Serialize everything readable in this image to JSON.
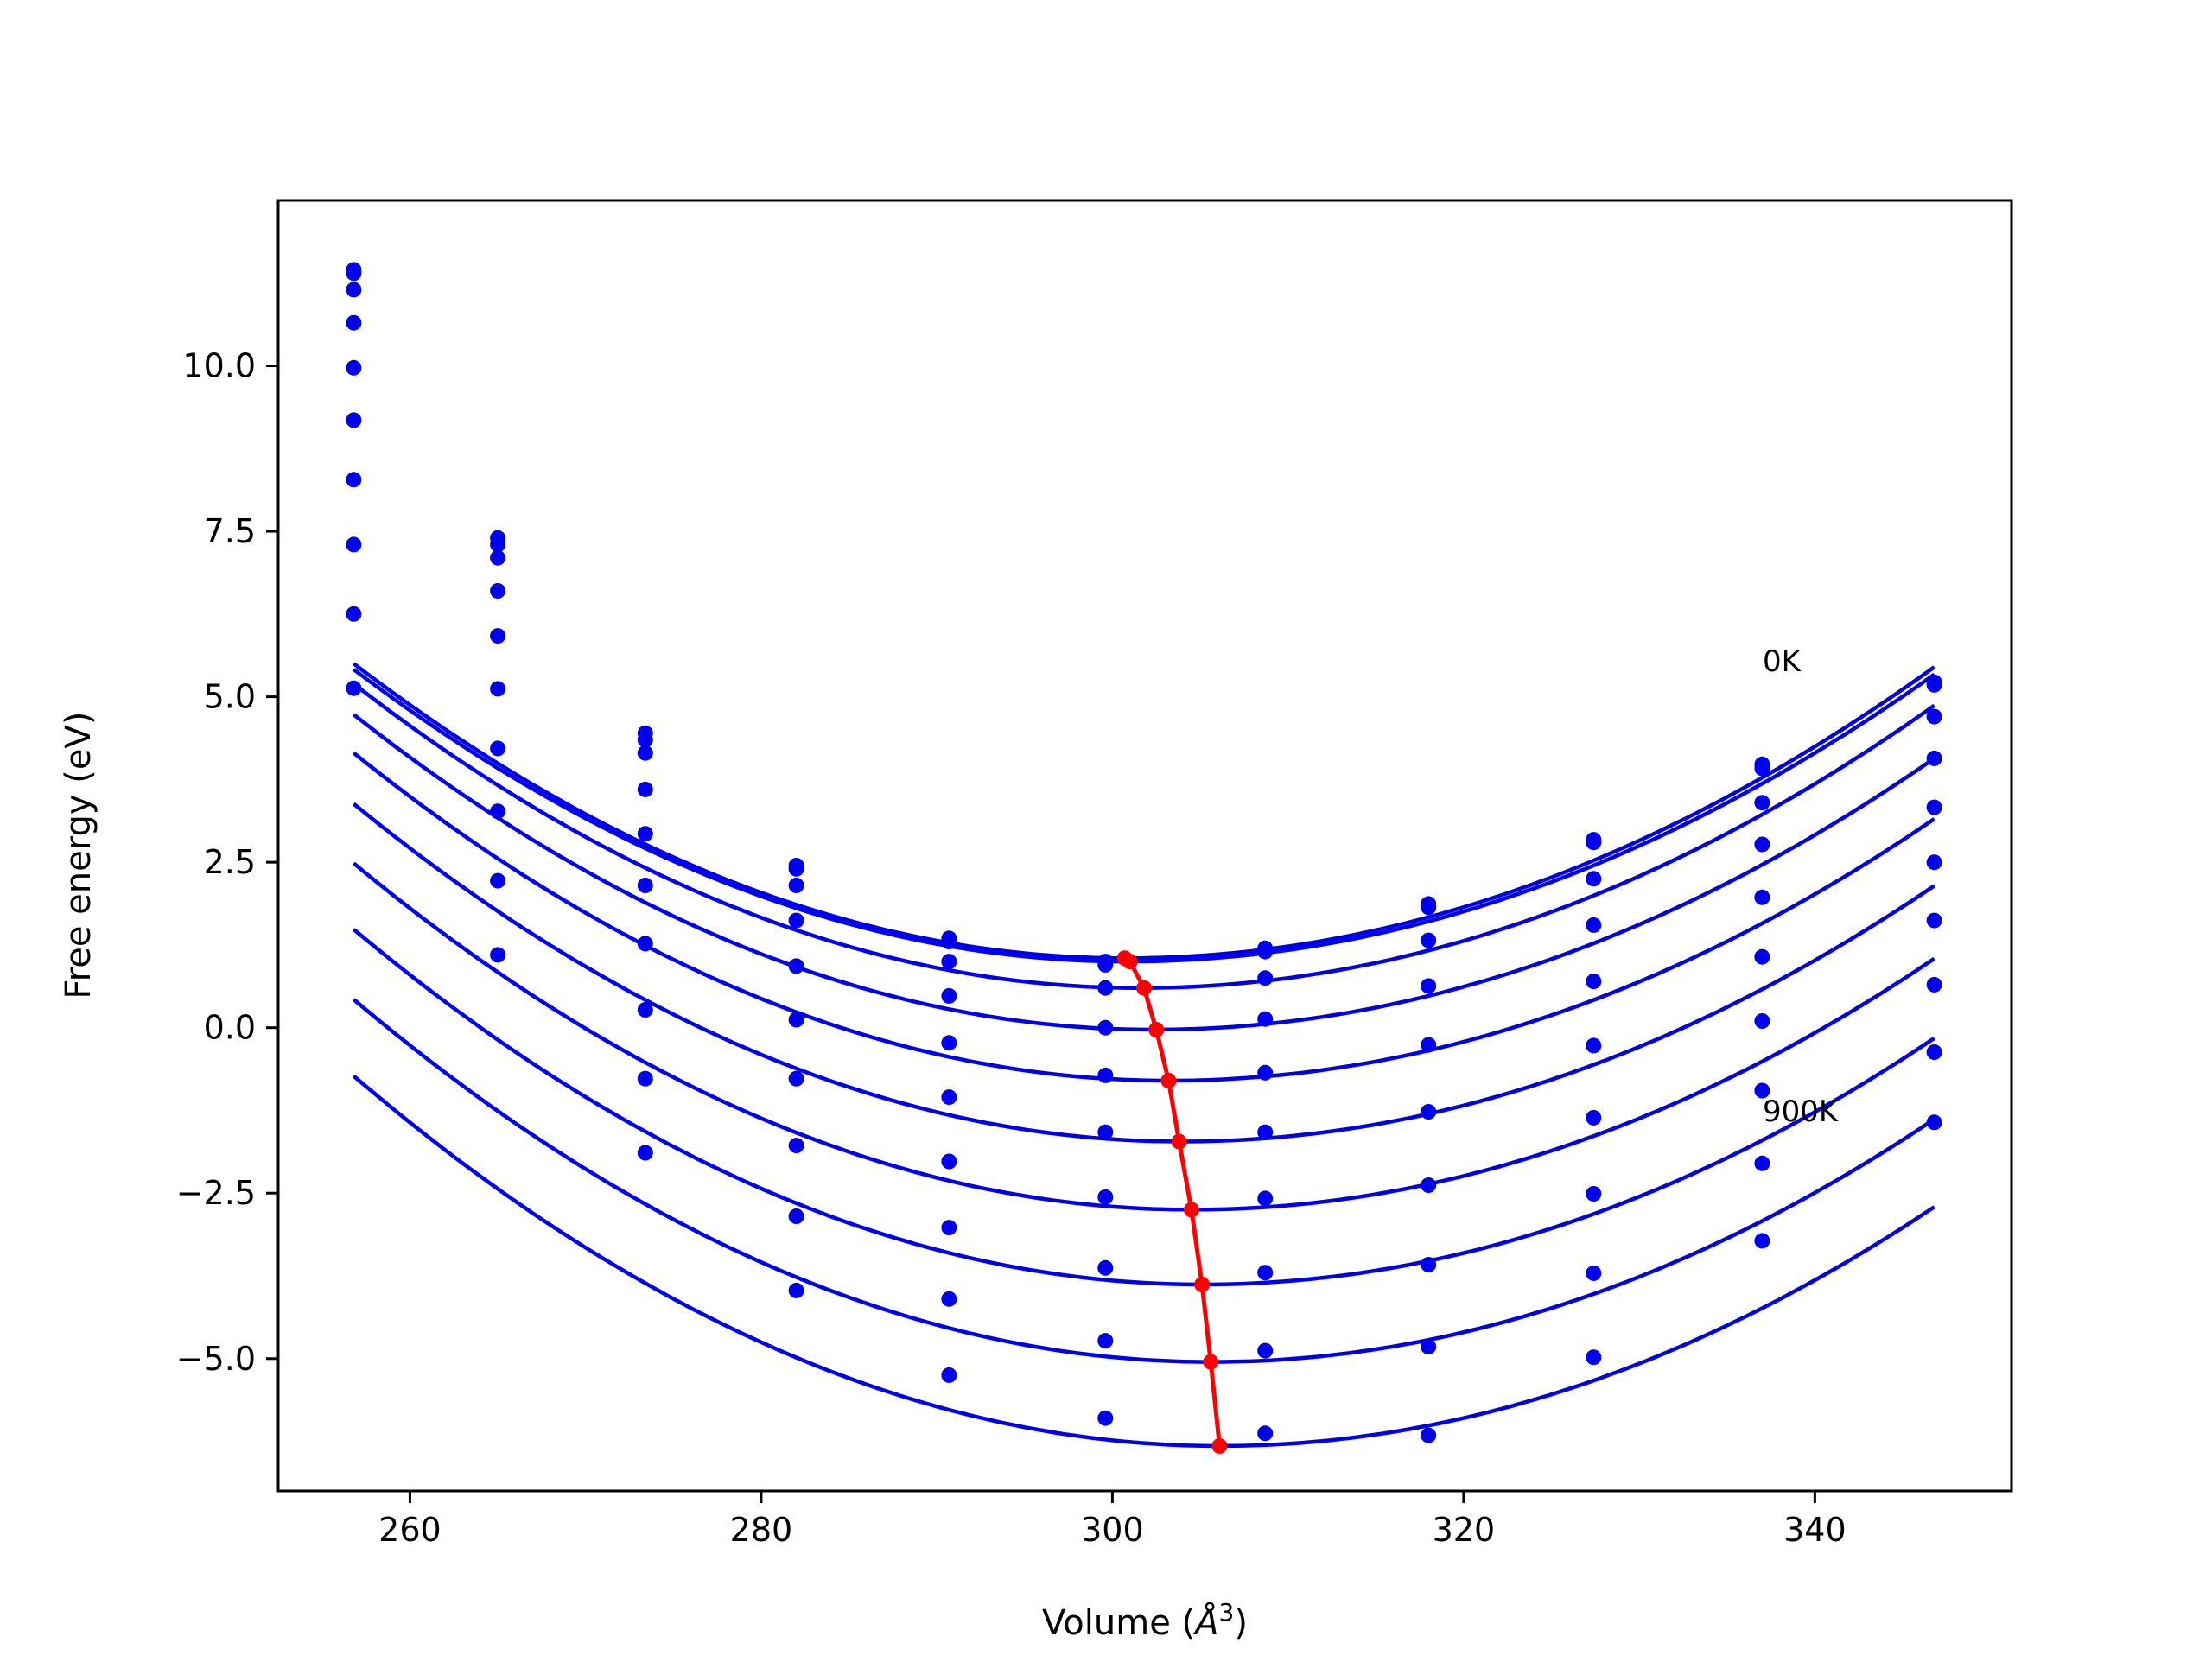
{
  "chart_data": {
    "type": "line",
    "xlabel": "Volume (Å³)",
    "xlabel_main": "Volume (",
    "xlabel_unit": "Å",
    "xlabel_exp": "3",
    "xlabel_close": ")",
    "ylabel": "Free energy (eV)",
    "xlim": [
      252.5,
      351.2
    ],
    "ylim": [
      -7.0,
      12.5
    ],
    "xticks": [
      260,
      280,
      300,
      320,
      340
    ],
    "xtick_labels": [
      "260",
      "280",
      "300",
      "320",
      "340"
    ],
    "yticks": [
      -5.0,
      -2.5,
      0.0,
      2.5,
      5.0,
      7.5,
      10.0
    ],
    "ytick_labels": [
      "−5.0",
      "−2.5",
      "0.0",
      "2.5",
      "5.0",
      "7.5",
      "10.0"
    ],
    "x": [
      256.8,
      265.0,
      273.4,
      282.0,
      290.7,
      299.6,
      308.7,
      318.0,
      327.4,
      337.0,
      346.8
    ],
    "series": [
      {
        "values": [
          11.45,
          7.4,
          4.45,
          2.45,
          1.35,
          1.0,
          1.2,
          1.87,
          2.84,
          3.98,
          5.22
        ],
        "fit": {
          "min_v": 300.7,
          "min_e": 1.05,
          "left_k": 0.00231,
          "right_k": 0.00207
        }
      },
      {
        "values": [
          11.4,
          7.3,
          4.35,
          2.4,
          1.3,
          0.95,
          1.15,
          1.82,
          2.8,
          3.92,
          5.18
        ],
        "fit": {
          "min_v": 300.8,
          "min_e": 1.0,
          "left_k": 0.00228,
          "right_k": 0.00205
        }
      },
      {
        "values": [
          11.15,
          7.1,
          4.15,
          2.15,
          1.0,
          0.6,
          0.75,
          1.32,
          2.25,
          3.4,
          4.7
        ],
        "fit": {
          "min_v": 301.5,
          "min_e": 0.6,
          "left_k": 0.0023,
          "right_k": 0.00208
        }
      },
      {
        "values": [
          10.65,
          6.6,
          3.6,
          1.62,
          0.48,
          0.0,
          0.13,
          0.63,
          1.55,
          2.77,
          4.07
        ],
        "fit": {
          "min_v": 302.3,
          "min_e": -0.03,
          "left_k": 0.0023,
          "right_k": 0.00207
        }
      },
      {
        "values": [
          9.97,
          5.92,
          2.93,
          0.93,
          -0.23,
          -0.72,
          -0.68,
          -0.26,
          0.7,
          1.97,
          3.33
        ],
        "fit": {
          "min_v": 303.2,
          "min_e": -0.8,
          "left_k": 0.0023,
          "right_k": 0.00208
        }
      },
      {
        "values": [
          9.18,
          5.12,
          2.15,
          0.12,
          -1.05,
          -1.58,
          -1.58,
          -1.27,
          -0.27,
          1.07,
          2.5
        ],
        "fit": {
          "min_v": 303.9,
          "min_e": -1.72,
          "left_k": 0.0023,
          "right_k": 0.0021
        }
      },
      {
        "values": [
          8.28,
          4.22,
          1.27,
          -0.77,
          -2.02,
          -2.56,
          -2.58,
          -2.38,
          -1.36,
          0.1,
          1.62
        ],
        "fit": {
          "min_v": 304.5,
          "min_e": -2.75,
          "left_k": 0.0023,
          "right_k": 0.00212
        }
      },
      {
        "values": [
          7.3,
          3.27,
          0.27,
          -1.78,
          -3.02,
          -3.63,
          -3.7,
          -3.58,
          -2.51,
          -0.95,
          0.65
        ],
        "fit": {
          "min_v": 305.1,
          "min_e": -3.88,
          "left_k": 0.0023,
          "right_k": 0.00214
        }
      },
      {
        "values": [
          6.25,
          2.22,
          -0.77,
          -2.85,
          -4.1,
          -4.73,
          -4.88,
          -4.82,
          -3.71,
          -2.05,
          -0.37
        ],
        "fit": {
          "min_v": 305.6,
          "min_e": -5.05,
          "left_k": 0.0023,
          "right_k": 0.00216
        }
      },
      {
        "values": [
          5.13,
          1.1,
          -1.89,
          -3.97,
          -5.25,
          -5.9,
          -6.13,
          -6.16,
          -4.98,
          -3.22,
          -1.43
        ],
        "fit": {
          "min_v": 306.1,
          "min_e": -6.32,
          "left_k": 0.0023,
          "right_k": 0.00218
        }
      }
    ],
    "minima_curve": {
      "x": [
        300.7,
        301.0,
        301.8,
        302.5,
        303.2,
        303.8,
        304.5,
        305.1,
        305.6,
        306.1
      ],
      "y": [
        1.05,
        1.0,
        0.6,
        -0.03,
        -0.8,
        -1.72,
        -2.75,
        -3.88,
        -5.05,
        -6.32
      ]
    },
    "annotations": [
      {
        "text": "0K",
        "x": 336.8,
        "y": 5.3
      },
      {
        "text": "900K",
        "x": 336.8,
        "y": -1.45
      }
    ],
    "colors": {
      "curves": "#0000ee",
      "minima": "#ff0000",
      "axes": "#000000"
    },
    "grid": false
  }
}
